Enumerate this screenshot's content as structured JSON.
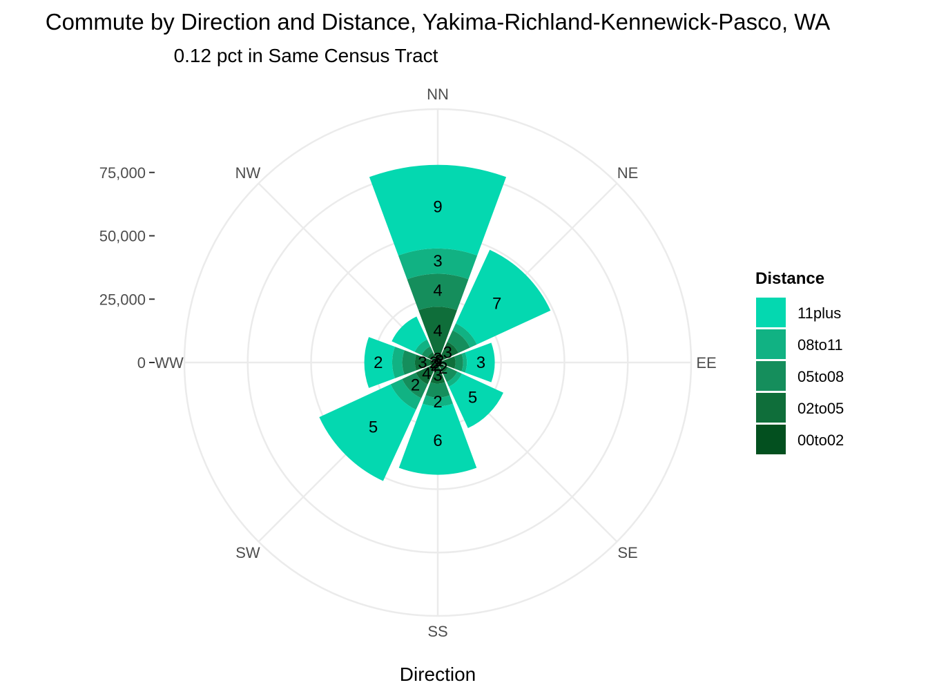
{
  "chart_data": {
    "type": "polar-stacked-bar",
    "title": "Commute by Direction and Distance, Yakima-Richland-Kennewick-Pasco, WA",
    "subtitle": "0.12 pct in Same Census Tract",
    "xlabel": "Direction",
    "directions": [
      "NN",
      "NE",
      "EE",
      "SE",
      "SS",
      "SW",
      "WW",
      "NW"
    ],
    "radial_axis": {
      "ticks": [
        0,
        25000,
        50000,
        75000
      ],
      "tick_labels": [
        "0",
        "25,000",
        "50,000",
        "75,000"
      ],
      "max": 100000
    },
    "legend": {
      "title": "Distance",
      "position": "right",
      "order": [
        "11plus",
        "08to11",
        "05to08",
        "02to05",
        "00to02"
      ]
    },
    "grid": true,
    "series": [
      {
        "name": "00to02",
        "color": "#03501f",
        "values": [
          3000,
          2000,
          1500,
          1500,
          1800,
          3000,
          3000,
          2000
        ]
      },
      {
        "name": "02to05",
        "color": "#0f6e3a",
        "values": [
          19000,
          7000,
          5500,
          3000,
          6500,
          6500,
          6000,
          2500
        ]
      },
      {
        "name": "05to08",
        "color": "#158e5c",
        "values": [
          13000,
          5000,
          3000,
          4000,
          5500,
          6000,
          5000,
          2500
        ]
      },
      {
        "name": "08to11",
        "color": "#11b283",
        "values": [
          10000,
          3000,
          1500,
          2000,
          3500,
          5000,
          4000,
          3000
        ]
      },
      {
        "name": "11plus",
        "color": "#04d8b0",
        "values": [
          33000,
          32000,
          11000,
          18000,
          27000,
          31000,
          11000,
          10000
        ]
      }
    ],
    "labels": {
      "00to02": [
        "3",
        "2",
        "",
        "",
        "2",
        "2",
        "2",
        ""
      ],
      "02to05": [
        "4",
        "3",
        "",
        "2",
        "3",
        "4",
        "3",
        ""
      ],
      "05to08": [
        "4",
        "",
        "",
        "",
        "",
        "2",
        "",
        ""
      ],
      "08to11": [
        "3",
        "",
        "",
        "",
        "2",
        "",
        "",
        ""
      ],
      "11plus": [
        "9",
        "7",
        "3",
        "5",
        "6",
        "5",
        "2",
        ""
      ]
    }
  }
}
